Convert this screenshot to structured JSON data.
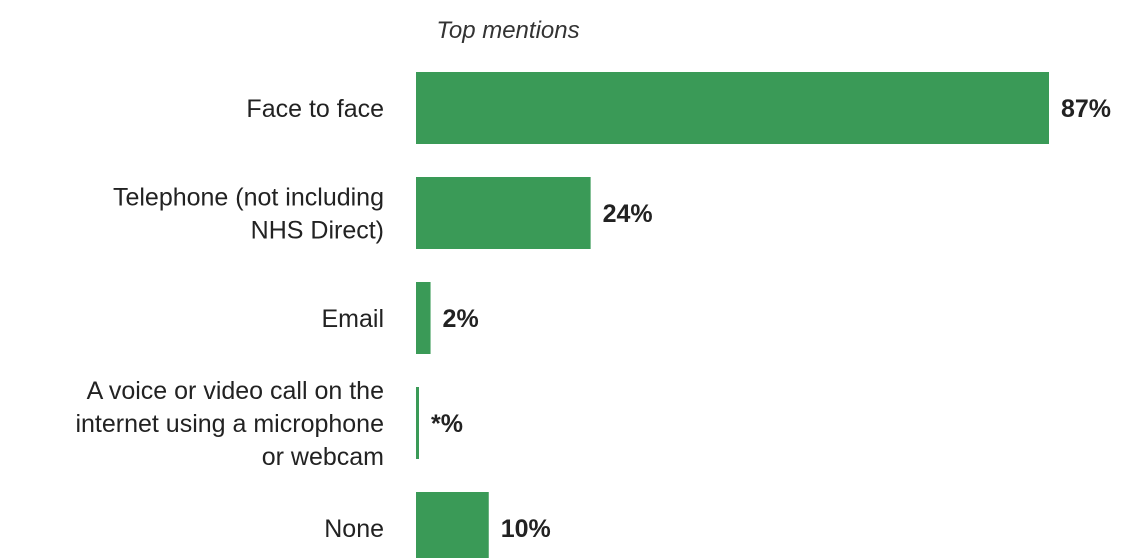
{
  "chart_data": {
    "type": "bar",
    "orientation": "horizontal",
    "title": "Top mentions",
    "categories": [
      [
        "Face to face"
      ],
      [
        "Telephone (not including",
        "NHS Direct)"
      ],
      [
        "Email"
      ],
      [
        "A voice or video call on the",
        "internet using a microphone",
        "or webcam"
      ],
      [
        "None"
      ]
    ],
    "values": [
      87,
      24,
      2,
      0.3,
      10
    ],
    "value_labels": [
      "87%",
      "24%",
      "2%",
      "*%",
      "10%"
    ],
    "xlim": [
      0,
      87
    ],
    "grid": false,
    "legend": "none",
    "colors": {
      "bar": "#3a9a57",
      "text": "#222222",
      "title": "#333333"
    }
  }
}
